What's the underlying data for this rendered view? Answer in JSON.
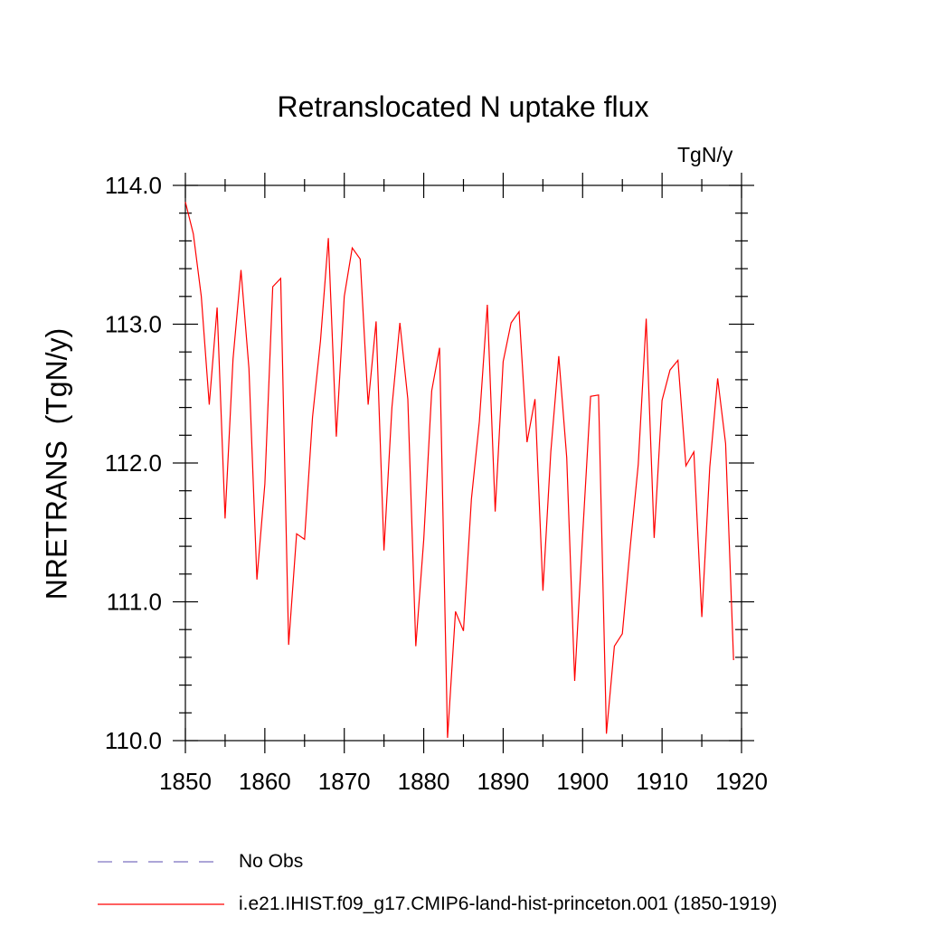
{
  "chart_data": {
    "type": "line",
    "title": "Retranslocated N uptake flux",
    "units": "TgN/y",
    "ylabel": "NRETRANS  (TgN/y)",
    "xlim": [
      1850,
      1920
    ],
    "ylim": [
      110.0,
      114.0
    ],
    "xticks": [
      1850,
      1860,
      1870,
      1880,
      1890,
      1900,
      1910,
      1920
    ],
    "yticks": [
      "110.0",
      "111.0",
      "112.0",
      "113.0",
      "114.0"
    ],
    "grid": false,
    "legend_position": "bottom",
    "series": [
      {
        "name": "i.e21.IHIST.f09_g17.CMIP6-land-hist-princeton.001 (1850-1919)",
        "color": "#ff0000",
        "style": "solid",
        "x": [
          1850,
          1851,
          1852,
          1853,
          1854,
          1855,
          1856,
          1857,
          1858,
          1859,
          1860,
          1861,
          1862,
          1863,
          1864,
          1865,
          1866,
          1867,
          1868,
          1869,
          1870,
          1871,
          1872,
          1873,
          1874,
          1875,
          1876,
          1877,
          1878,
          1879,
          1880,
          1881,
          1882,
          1883,
          1884,
          1885,
          1886,
          1887,
          1888,
          1889,
          1890,
          1891,
          1892,
          1893,
          1894,
          1895,
          1896,
          1897,
          1898,
          1899,
          1900,
          1901,
          1902,
          1903,
          1904,
          1905,
          1906,
          1907,
          1908,
          1909,
          1910,
          1911,
          1912,
          1913,
          1914,
          1915,
          1916,
          1917,
          1918,
          1919
        ],
        "y": [
          113.88,
          113.65,
          113.2,
          112.42,
          113.12,
          111.6,
          112.75,
          113.39,
          112.68,
          111.16,
          111.85,
          113.27,
          113.33,
          110.69,
          111.49,
          111.45,
          112.33,
          112.88,
          113.62,
          112.19,
          113.2,
          113.55,
          113.47,
          112.42,
          113.02,
          111.37,
          112.4,
          113.01,
          112.46,
          110.68,
          111.45,
          112.52,
          112.83,
          110.02,
          110.93,
          110.79,
          111.74,
          112.3,
          113.14,
          111.65,
          112.73,
          113.01,
          113.09,
          112.15,
          112.46,
          111.08,
          112.08,
          112.77,
          112.04,
          110.43,
          111.48,
          112.48,
          112.49,
          110.05,
          110.68,
          110.77,
          111.4,
          111.99,
          113.04,
          111.46,
          112.45,
          112.67,
          112.74,
          111.98,
          112.08,
          110.89,
          111.97,
          112.61,
          112.14,
          110.58
        ]
      },
      {
        "name": "No Obs",
        "color": "#7b6fbf",
        "style": "dashed",
        "x": [],
        "y": []
      }
    ]
  }
}
